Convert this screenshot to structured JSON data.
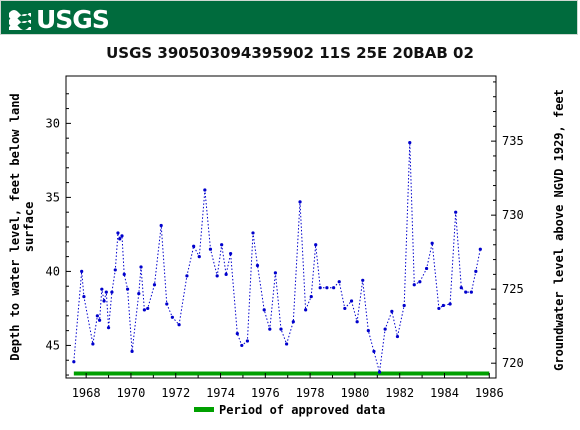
{
  "header": {
    "logo_text": "USGS",
    "bg_color": "#006b3d"
  },
  "chart_data": {
    "type": "line",
    "title": "USGS 390503094395902 11S 25E 20BAB 02",
    "ylabel_left": [
      "Depth to water level, feet below land",
      "surface"
    ],
    "ylabel_right": "Groundwater level above NGVD 1929, feet",
    "xlim": [
      1967.1,
      1986.3
    ],
    "ylim_left": [
      47.2,
      26.8
    ],
    "ylim_right": [
      719.0,
      739.4
    ],
    "x_ticks": [
      1968,
      1970,
      1972,
      1974,
      1976,
      1978,
      1980,
      1982,
      1984,
      1986
    ],
    "y_ticks_left": [
      30,
      35,
      40,
      45
    ],
    "y_ticks_right": [
      720,
      725,
      730,
      735
    ],
    "grid": false,
    "series": [
      {
        "color": "#0000cc",
        "style": "dotted line with dot markers",
        "x": [
          1967.45,
          1967.8,
          1967.9,
          1968.3,
          1968.5,
          1968.6,
          1968.7,
          1968.8,
          1968.9,
          1969.0,
          1969.15,
          1969.3,
          1969.42,
          1969.5,
          1969.6,
          1969.7,
          1969.85,
          1970.05,
          1970.35,
          1970.45,
          1970.6,
          1970.75,
          1971.05,
          1971.35,
          1971.6,
          1971.85,
          1972.15,
          1972.5,
          1972.8,
          1973.05,
          1973.3,
          1973.55,
          1973.85,
          1974.05,
          1974.25,
          1974.45,
          1974.75,
          1974.95,
          1975.2,
          1975.45,
          1975.65,
          1975.95,
          1976.2,
          1976.45,
          1976.7,
          1976.95,
          1977.25,
          1977.55,
          1977.8,
          1978.05,
          1978.25,
          1978.45,
          1978.75,
          1979.05,
          1979.3,
          1979.55,
          1979.85,
          1980.1,
          1980.35,
          1980.6,
          1980.85,
          1981.1,
          1981.35,
          1981.65,
          1981.9,
          1982.2,
          1982.45,
          1982.65,
          1982.9,
          1983.2,
          1983.45,
          1983.75,
          1983.95,
          1984.25,
          1984.5,
          1984.75,
          1984.95,
          1985.2,
          1985.4,
          1985.6
        ],
        "y": [
          46.1,
          40.0,
          41.7,
          44.9,
          43.0,
          43.3,
          41.2,
          42.0,
          41.4,
          43.8,
          41.4,
          39.9,
          37.4,
          37.8,
          37.6,
          40.2,
          41.2,
          45.4,
          41.5,
          39.7,
          42.6,
          42.5,
          40.9,
          36.9,
          42.2,
          43.1,
          43.6,
          40.3,
          38.3,
          39.0,
          34.5,
          38.5,
          40.3,
          38.2,
          40.2,
          38.8,
          44.2,
          45.0,
          44.7,
          37.4,
          39.6,
          42.6,
          43.9,
          40.1,
          43.9,
          44.9,
          43.4,
          35.3,
          42.6,
          41.7,
          38.2,
          41.1,
          41.1,
          41.1,
          40.7,
          42.5,
          42.0,
          43.4,
          40.6,
          44.0,
          45.4,
          46.8,
          43.9,
          42.7,
          44.4,
          42.3,
          31.3,
          40.9,
          40.7,
          39.8,
          38.1,
          42.5,
          42.3,
          42.2,
          36.0,
          41.1,
          41.4,
          41.4,
          40.0,
          38.5
        ]
      }
    ],
    "approved_period": {
      "x": [
        1967.45,
        1986.0
      ],
      "color": "#00a000"
    },
    "legend": {
      "label": "Period of approved data",
      "position": "bottom-center"
    }
  }
}
